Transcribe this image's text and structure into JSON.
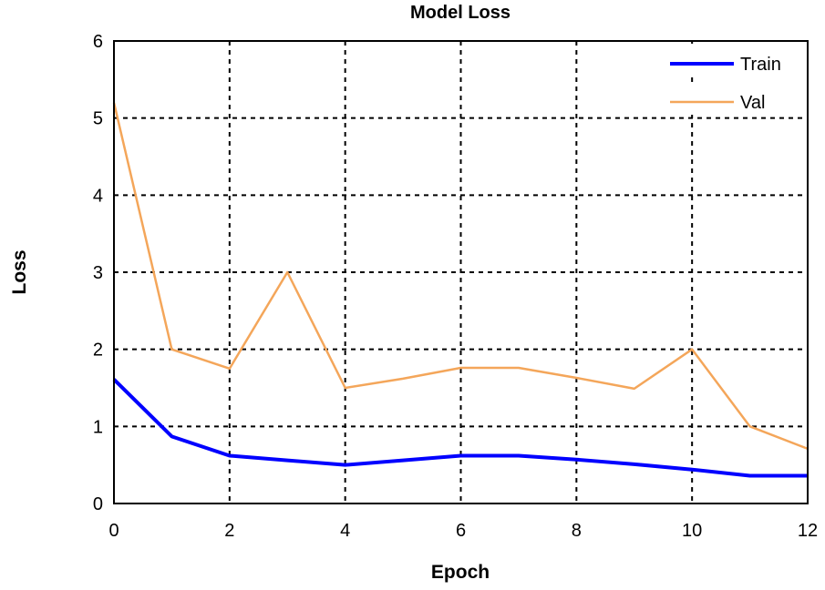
{
  "chart_data": {
    "type": "line",
    "title": "Model Loss",
    "xlabel": "Epoch",
    "ylabel": "Loss",
    "xlim": [
      0,
      12
    ],
    "ylim": [
      0,
      6
    ],
    "xticks": [
      0,
      2,
      4,
      6,
      8,
      10,
      12
    ],
    "yticks": [
      0,
      1,
      2,
      3,
      4,
      5,
      6
    ],
    "grid": true,
    "legend_position": "top-right",
    "x": [
      0,
      1,
      2,
      3,
      4,
      5,
      6,
      7,
      8,
      9,
      10,
      11,
      12
    ],
    "series": [
      {
        "name": "Train",
        "color": "#0000ff",
        "values": [
          1.61,
          0.87,
          0.62,
          0.56,
          0.5,
          0.56,
          0.62,
          0.62,
          0.57,
          0.51,
          0.44,
          0.36,
          0.36
        ]
      },
      {
        "name": "Val",
        "color": "#f4a65a",
        "values": [
          5.2,
          2.0,
          1.75,
          3.0,
          1.5,
          1.62,
          1.76,
          1.76,
          1.63,
          1.49,
          2.0,
          1.0,
          0.71
        ]
      }
    ]
  }
}
